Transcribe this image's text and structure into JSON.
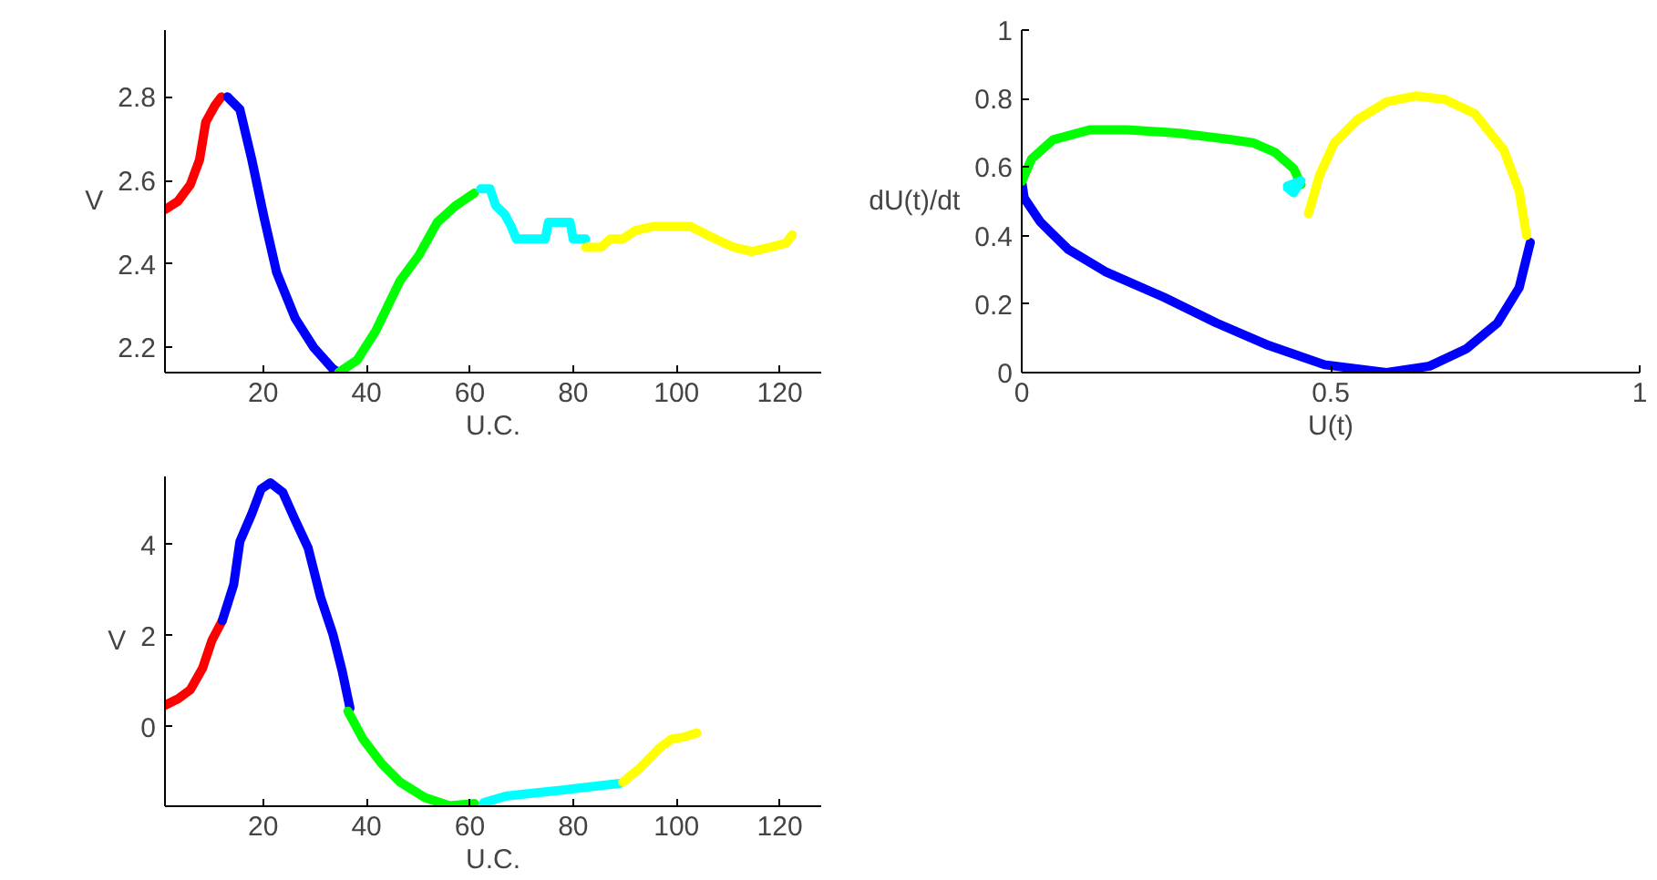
{
  "chart_data": [
    {
      "type": "line",
      "xlabel": "U.C.",
      "ylabel": "V",
      "xlim": [
        1,
        128
      ],
      "ylim": [
        2.14,
        2.96
      ],
      "xticks": [
        20,
        40,
        60,
        80,
        100,
        120
      ],
      "yticks": [
        2.2,
        2.4,
        2.6,
        2.8
      ],
      "grid": false,
      "series": [
        {
          "color": "#ff0000",
          "x": [
            1,
            3.5,
            5.9,
            7.7,
            8.9,
            10.7,
            11.9
          ],
          "values": [
            2.53,
            2.55,
            2.59,
            2.65,
            2.74,
            2.78,
            2.8
          ]
        },
        {
          "color": "#0000ff",
          "x": [
            13.1,
            15.5,
            17.8,
            20.2,
            22.6,
            26.2,
            29.8,
            33.4,
            34.6
          ],
          "values": [
            2.8,
            2.77,
            2.65,
            2.51,
            2.38,
            2.27,
            2.2,
            2.15,
            2.14
          ]
        },
        {
          "color": "#00ff00",
          "x": [
            34.6,
            38.2,
            41.8,
            46.5,
            50.1,
            53.7,
            57.3,
            60.9
          ],
          "values": [
            2.14,
            2.17,
            2.24,
            2.36,
            2.42,
            2.5,
            2.54,
            2.57
          ]
        },
        {
          "color": "#00ffff",
          "x": [
            62.1,
            63.9,
            65.0,
            66.7,
            68.0,
            69.0,
            74.6,
            75.2,
            79.4,
            80.0,
            82.4
          ],
          "values": [
            2.58,
            2.58,
            2.54,
            2.52,
            2.49,
            2.46,
            2.46,
            2.5,
            2.5,
            2.46,
            2.46
          ]
        },
        {
          "color": "#ffff00",
          "x": [
            82.4,
            85.4,
            87.2,
            89.6,
            92.0,
            95.5,
            102.7,
            107.5,
            111.1,
            114.6,
            118.2,
            121.2,
            122.4
          ],
          "values": [
            2.44,
            2.44,
            2.46,
            2.46,
            2.48,
            2.49,
            2.49,
            2.46,
            2.44,
            2.43,
            2.44,
            2.45,
            2.47
          ]
        }
      ]
    },
    {
      "type": "line",
      "xlabel": "U(t)",
      "ylabel": "dU(t)/dt",
      "xlim": [
        0,
        1
      ],
      "ylim": [
        0,
        1
      ],
      "xticks": [
        0,
        0.5,
        1
      ],
      "yticks": [
        0,
        0.2,
        0.4,
        0.6,
        0.8,
        1
      ],
      "grid": false,
      "series": [
        {
          "color": "#0000ff",
          "x": [
            0,
            0.004,
            0.03,
            0.075,
            0.135,
            0.23,
            0.315,
            0.4,
            0.49,
            0.59,
            0.66,
            0.72,
            0.77,
            0.805,
            0.823
          ],
          "values": [
            0.558,
            0.51,
            0.44,
            0.36,
            0.295,
            0.22,
            0.145,
            0.079,
            0.023,
            0,
            0.019,
            0.07,
            0.145,
            0.248,
            0.38
          ]
        },
        {
          "color": "#00ff00",
          "x": [
            0,
            0.016,
            0.051,
            0.111,
            0.171,
            0.255,
            0.339,
            0.374,
            0.41,
            0.44,
            0.452
          ],
          "values": [
            0.558,
            0.624,
            0.68,
            0.709,
            0.709,
            0.699,
            0.68,
            0.671,
            0.643,
            0.596,
            0.549
          ]
        },
        {
          "color": "#00ffff",
          "x": [
            0.43,
            0.452,
            0.44,
            0.43
          ],
          "values": [
            0.545,
            0.56,
            0.525,
            0.54
          ]
        },
        {
          "color": "#ffff00",
          "x": [
            0.817,
            0.805,
            0.78,
            0.733,
            0.685,
            0.638,
            0.59,
            0.542,
            0.506,
            0.482,
            0.464
          ],
          "values": [
            0.4,
            0.53,
            0.65,
            0.756,
            0.797,
            0.808,
            0.79,
            0.737,
            0.671,
            0.577,
            0.464
          ]
        }
      ]
    },
    {
      "type": "line",
      "xlabel": "U.C.",
      "ylabel": "V",
      "xlim": [
        1,
        128
      ],
      "ylim": [
        -1.75,
        5.5
      ],
      "xticks": [
        20,
        40,
        60,
        80,
        100,
        120
      ],
      "yticks": [
        0,
        2,
        4
      ],
      "grid": false,
      "series": [
        {
          "color": "#ff0000",
          "x": [
            1,
            3.5,
            5.9,
            8.3,
            10.1,
            12.1
          ],
          "values": [
            0.47,
            0.61,
            0.81,
            1.29,
            1.9,
            2.33
          ]
        },
        {
          "color": "#0000ff",
          "x": [
            12.1,
            14.3,
            15.5,
            17.8,
            19.6,
            21.4,
            23.8,
            26.2,
            28.7,
            31.1,
            33.5,
            35.3,
            36.8
          ],
          "values": [
            2.33,
            3.12,
            4.07,
            4.68,
            5.22,
            5.36,
            5.15,
            4.54,
            3.93,
            2.85,
            2.03,
            1.22,
            0.41
          ]
        },
        {
          "color": "#00ff00",
          "x": [
            36.4,
            39.3,
            42.9,
            46.5,
            51.3,
            56.1,
            60.9
          ],
          "values": [
            0.34,
            -0.27,
            -0.81,
            -1.22,
            -1.56,
            -1.74,
            -1.69
          ]
        },
        {
          "color": "#00ffff",
          "x": [
            62.7,
            66.9,
            71.6,
            77.6,
            83.6,
            89.0
          ],
          "values": [
            -1.67,
            -1.53,
            -1.47,
            -1.4,
            -1.32,
            -1.25
          ]
        },
        {
          "color": "#ffff00",
          "x": [
            89.6,
            93.2,
            96.7,
            99.1,
            101.5,
            103.9
          ],
          "values": [
            -1.22,
            -0.88,
            -0.47,
            -0.27,
            -0.23,
            -0.14
          ]
        }
      ]
    }
  ]
}
